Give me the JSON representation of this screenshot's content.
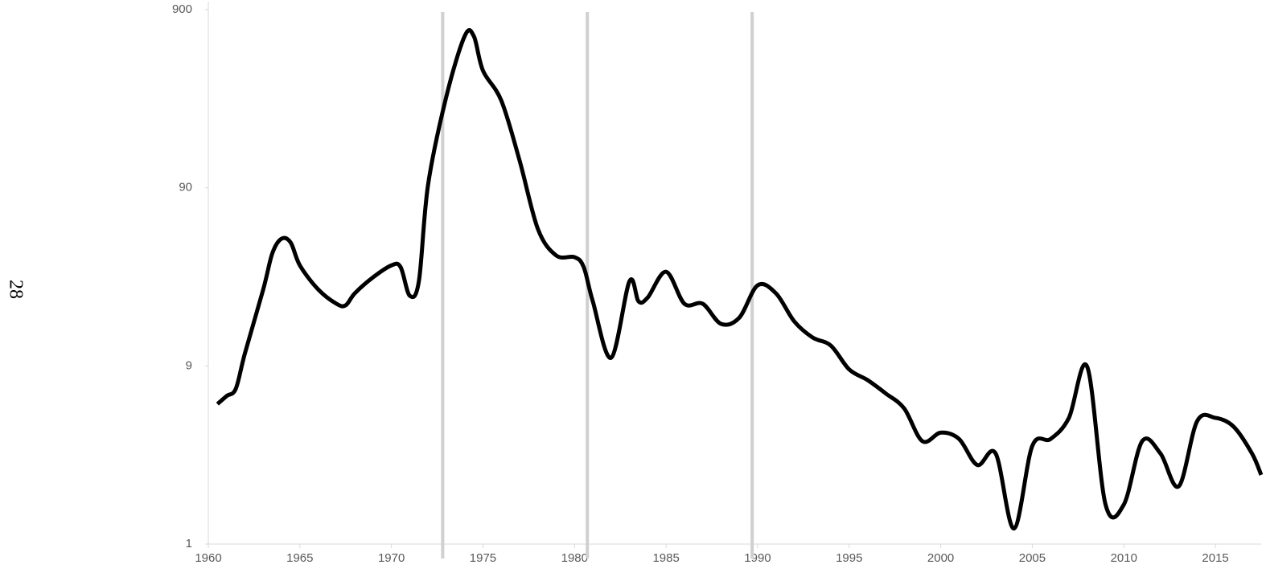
{
  "page_number": "28",
  "chart_data": {
    "type": "line",
    "x": [
      1960.5,
      1961,
      1961.5,
      1962,
      1963,
      1963.5,
      1964,
      1964.5,
      1965,
      1966,
      1967,
      1967.5,
      1968,
      1969,
      1970,
      1970.5,
      1971,
      1971.5,
      1972,
      1973,
      1974,
      1974.5,
      1975,
      1976,
      1977,
      1978,
      1979,
      1980,
      1980.5,
      1981,
      1982,
      1983,
      1983.5,
      1984,
      1985,
      1986,
      1987,
      1988,
      1989,
      1990,
      1991,
      1992,
      1993,
      1994,
      1995,
      1996,
      1997,
      1998,
      1999,
      2000,
      2001,
      2002,
      2003,
      2004,
      2005,
      2006,
      2007,
      2008,
      2009,
      2010,
      2011,
      2012,
      2013,
      2014,
      2015,
      2016,
      2017,
      2017.5
    ],
    "series": [
      {
        "color": "#000000",
        "values": [
          5.5,
          6.1,
          6.7,
          10.6,
          24.2,
          38.7,
          46.6,
          44.3,
          33,
          24.2,
          20.1,
          19.7,
          23,
          28.3,
          33,
          32.3,
          22.3,
          26.9,
          93.4,
          293,
          639,
          639,
          409,
          278,
          128,
          52.8,
          37.5,
          36.7,
          32.3,
          20.7,
          10,
          26.9,
          20.7,
          21.8,
          30.4,
          20.1,
          20.1,
          15.5,
          16.8,
          25.5,
          23,
          16,
          13,
          11.7,
          8.6,
          7.5,
          6.3,
          5.2,
          3.4,
          3.8,
          3.5,
          2.5,
          2.9,
          1.1,
          3.2,
          3.5,
          4.6,
          8.9,
          1.5,
          1.5,
          3.4,
          2.9,
          1.9,
          4.4,
          4.6,
          4.1,
          2.9,
          2.2
        ]
      }
    ],
    "xlim": [
      1960,
      2017.5
    ],
    "xticks": [
      1960,
      1965,
      1970,
      1975,
      1980,
      1985,
      1990,
      1995,
      2000,
      2005,
      2010,
      2015
    ],
    "ylim": [
      0.9,
      900
    ],
    "yticks": [
      {
        "value": 0.9,
        "label": "1"
      },
      9,
      90,
      900
    ],
    "log_scale": true,
    "vertical_markers": [
      1972.8,
      1980.7,
      1989.7
    ],
    "marker_color": "#d0d0d0"
  }
}
